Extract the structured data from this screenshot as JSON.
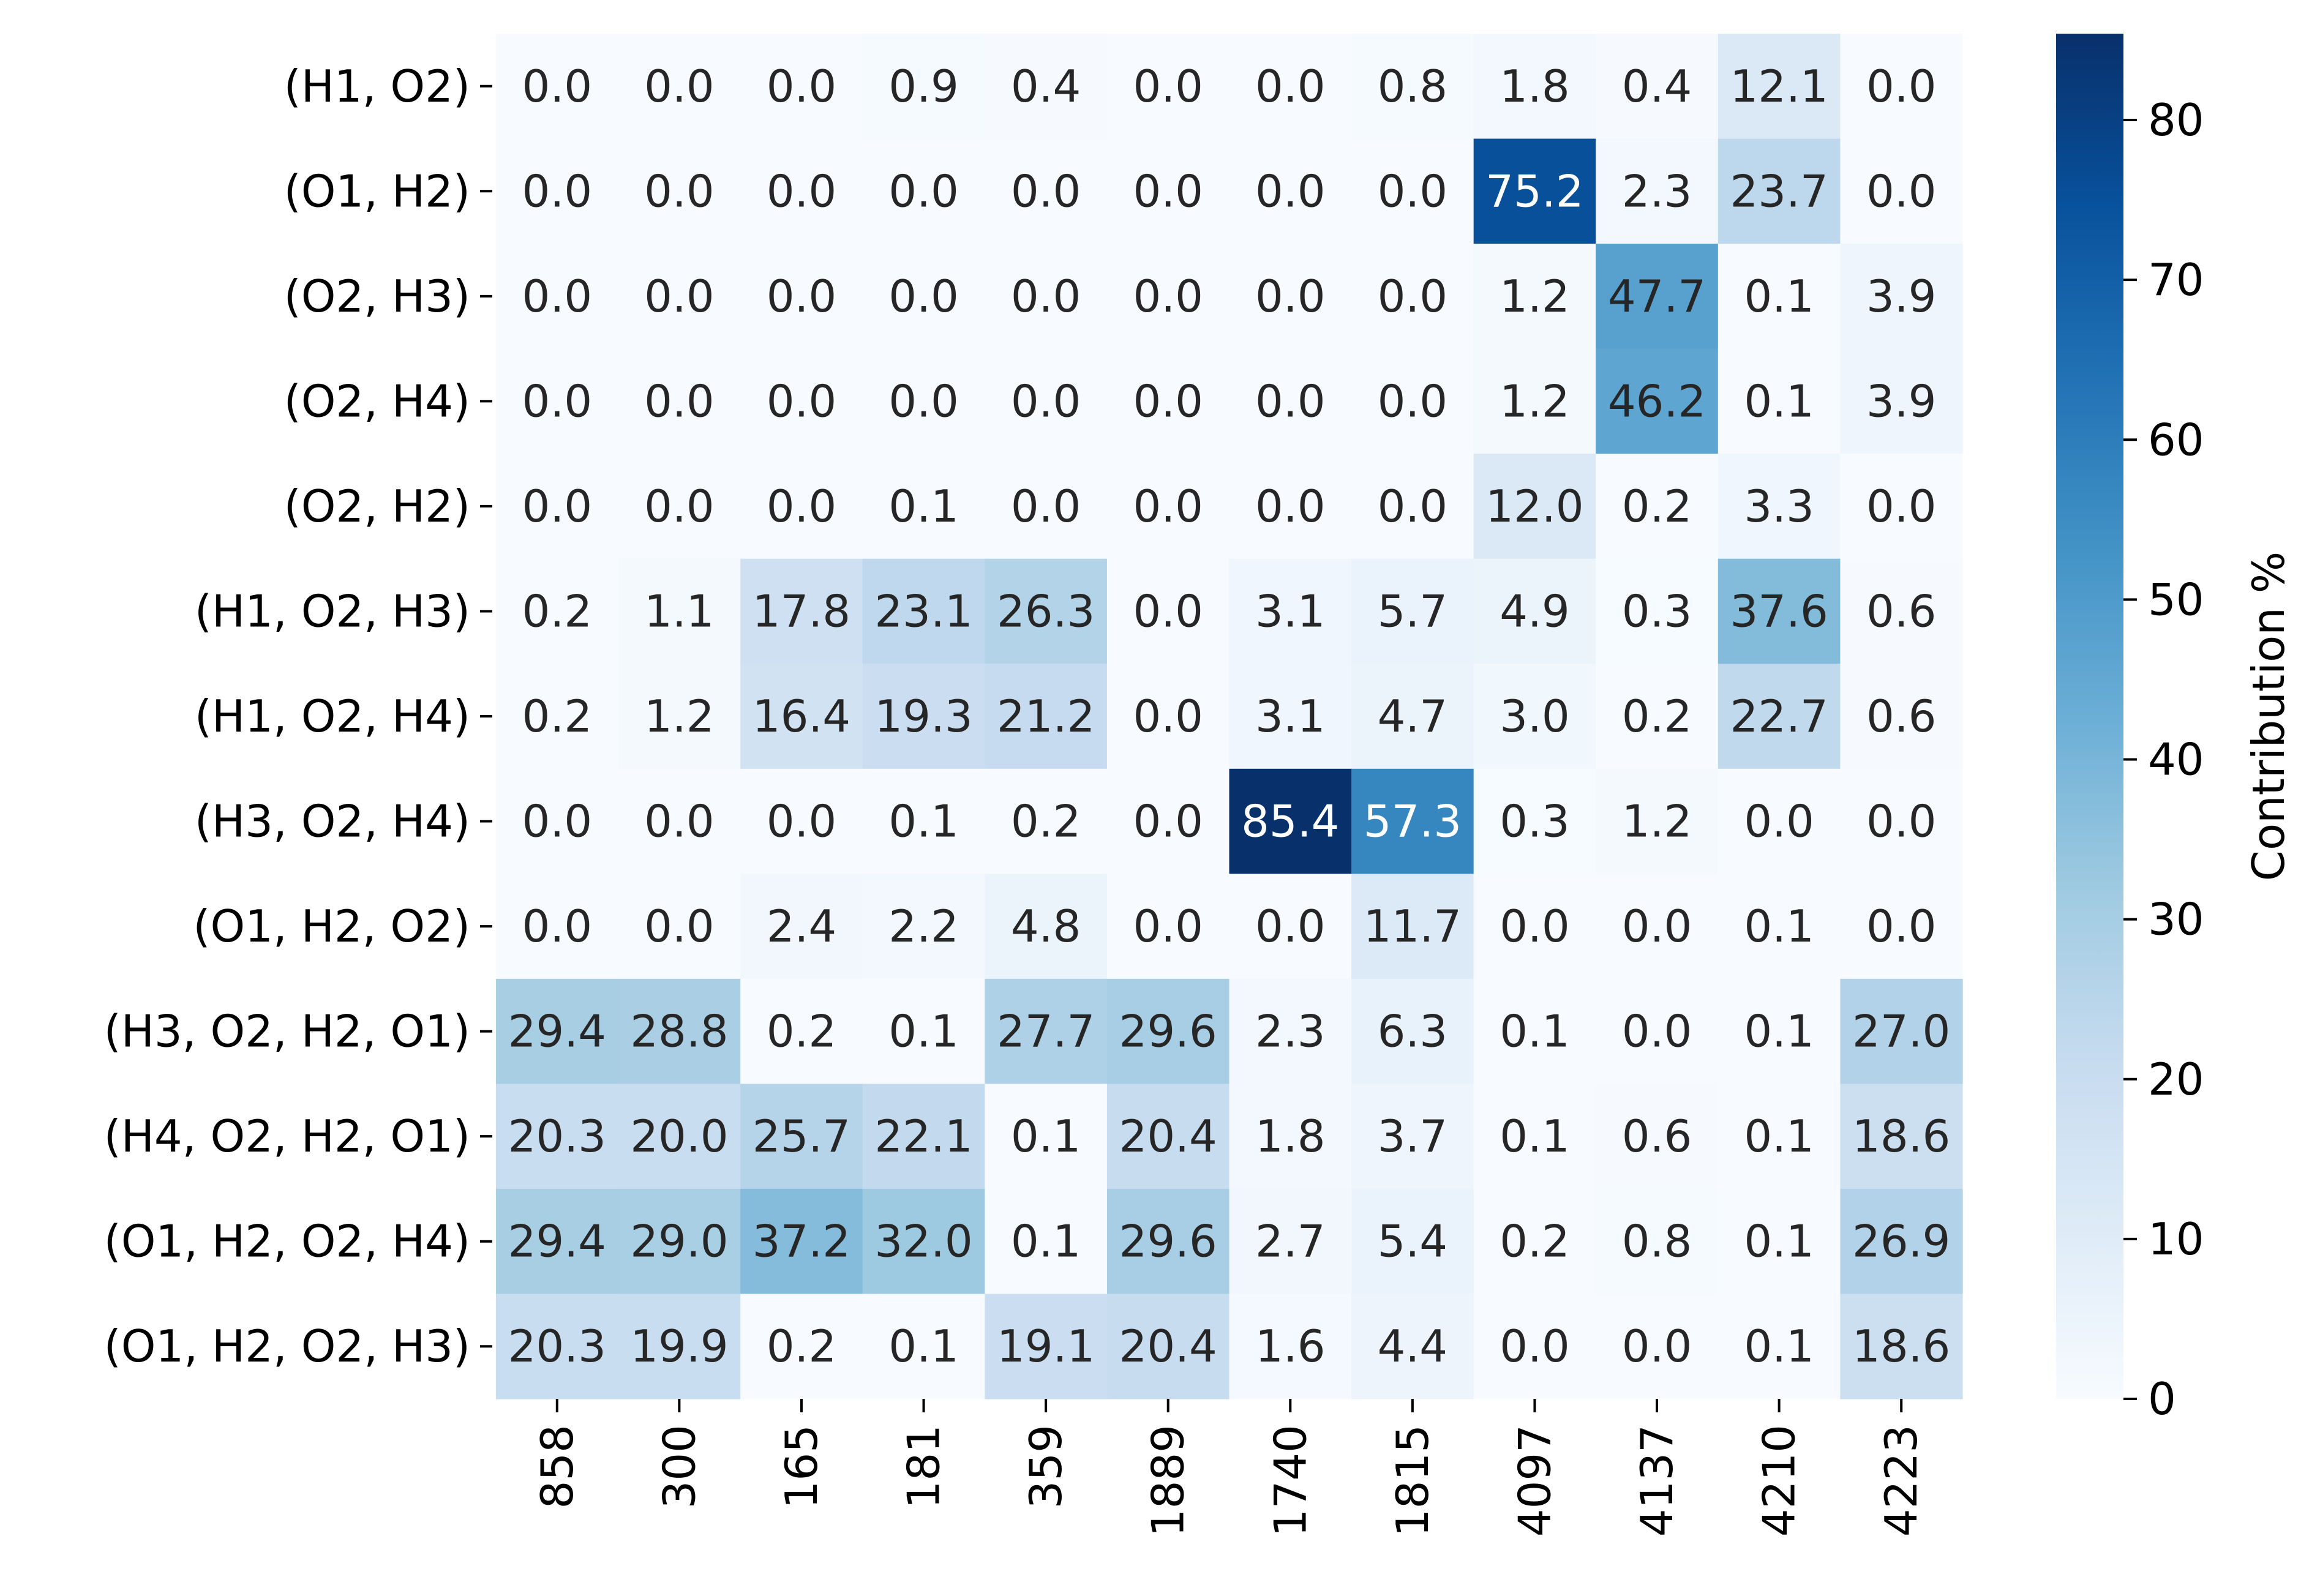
{
  "chart_data": {
    "type": "heatmap",
    "title": "",
    "xlabel": "",
    "ylabel": "",
    "colormap": "Blues",
    "colormap_stops": [
      "#f7fbff",
      "#deebf7",
      "#c6dbef",
      "#9ecae1",
      "#6baed6",
      "#4292c6",
      "#2171b5",
      "#08519c",
      "#08306b"
    ],
    "x_categories": [
      "858",
      "300",
      "165",
      "181",
      "359",
      "1889",
      "1740",
      "1815",
      "4097",
      "4137",
      "4210",
      "4223"
    ],
    "y_categories": [
      "(H1, O2)",
      "(O1, H2)",
      "(O2, H3)",
      "(O2, H4)",
      "(O2, H2)",
      "(H1, O2, H3)",
      "(H1, O2, H4)",
      "(H3, O2, H4)",
      "(O1, H2, O2)",
      "(H3, O2, H2, O1)",
      "(H4, O2, H2, O1)",
      "(O1, H2, O2, H4)",
      "(O1, H2, O2, H3)"
    ],
    "values": [
      [
        0.0,
        0.0,
        0.0,
        0.9,
        0.4,
        0.0,
        0.0,
        0.8,
        1.8,
        0.4,
        12.1,
        0.0
      ],
      [
        0.0,
        0.0,
        0.0,
        0.0,
        0.0,
        0.0,
        0.0,
        0.0,
        75.2,
        2.3,
        23.7,
        0.0
      ],
      [
        0.0,
        0.0,
        0.0,
        0.0,
        0.0,
        0.0,
        0.0,
        0.0,
        1.2,
        47.7,
        0.1,
        3.9
      ],
      [
        0.0,
        0.0,
        0.0,
        0.0,
        0.0,
        0.0,
        0.0,
        0.0,
        1.2,
        46.2,
        0.1,
        3.9
      ],
      [
        0.0,
        0.0,
        0.0,
        0.1,
        0.0,
        0.0,
        0.0,
        0.0,
        12.0,
        0.2,
        3.3,
        0.0
      ],
      [
        0.2,
        1.1,
        17.8,
        23.1,
        26.3,
        0.0,
        3.1,
        5.7,
        4.9,
        0.3,
        37.6,
        0.6
      ],
      [
        0.2,
        1.2,
        16.4,
        19.3,
        21.2,
        0.0,
        3.1,
        4.7,
        3.0,
        0.2,
        22.7,
        0.6
      ],
      [
        0.0,
        0.0,
        0.0,
        0.1,
        0.2,
        0.0,
        85.4,
        57.3,
        0.3,
        1.2,
        0.0,
        0.0
      ],
      [
        0.0,
        0.0,
        2.4,
        2.2,
        4.8,
        0.0,
        0.0,
        11.7,
        0.0,
        0.0,
        0.1,
        0.0
      ],
      [
        29.4,
        28.8,
        0.2,
        0.1,
        27.7,
        29.6,
        2.3,
        6.3,
        0.1,
        0.0,
        0.1,
        27.0
      ],
      [
        20.3,
        20.0,
        25.7,
        22.1,
        0.1,
        20.4,
        1.8,
        3.7,
        0.1,
        0.6,
        0.1,
        18.6
      ],
      [
        29.4,
        29.0,
        37.2,
        32.0,
        0.1,
        29.6,
        2.7,
        5.4,
        0.2,
        0.8,
        0.1,
        26.9
      ],
      [
        20.3,
        19.9,
        0.2,
        0.1,
        19.1,
        20.4,
        1.6,
        4.4,
        0.0,
        0.0,
        0.1,
        18.6
      ]
    ],
    "value_format": "0.1f",
    "colorbar": {
      "label": "Contribution %",
      "vmin": 0,
      "vmax": 85.4,
      "ticks": [
        0,
        10,
        20,
        30,
        40,
        50,
        60,
        70,
        80
      ],
      "placement": "right"
    },
    "grid": false
  }
}
